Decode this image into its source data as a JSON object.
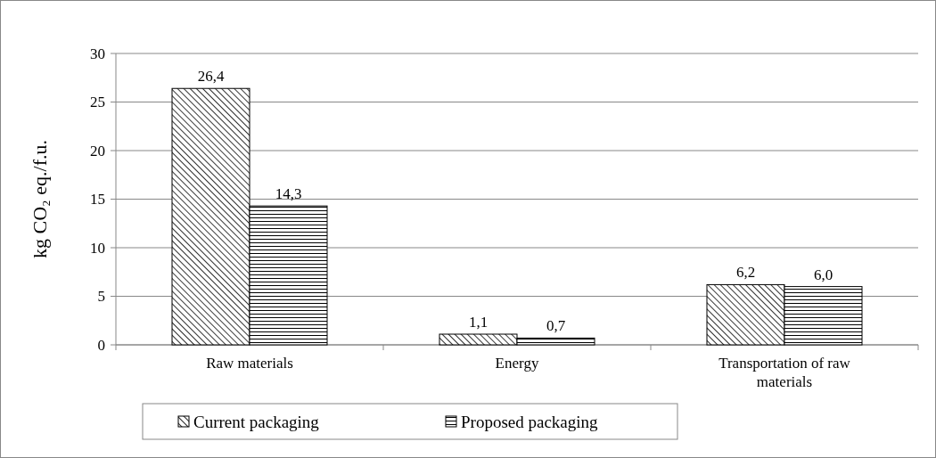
{
  "chart_data": {
    "type": "bar",
    "ylabel": "kg CO₂ eq./f.u.",
    "categories": [
      "Raw materials",
      "Energy",
      "Transportation of raw materials"
    ],
    "series": [
      {
        "name": "Current packaging",
        "color": "#000000",
        "values": [
          26.4,
          1.1,
          6.2
        ],
        "value_labels": [
          "26,4",
          "1,1",
          "6,2"
        ]
      },
      {
        "name": "Proposed packaging",
        "color": "#000000",
        "values": [
          14.3,
          0.7,
          6.0
        ],
        "value_labels": [
          "14,3",
          "0,7",
          "6,0"
        ]
      }
    ],
    "ylim": [
      0,
      30
    ],
    "yticks": [
      0,
      5,
      10,
      15,
      20,
      25,
      30
    ],
    "grid": "y",
    "legend": "bottom"
  }
}
